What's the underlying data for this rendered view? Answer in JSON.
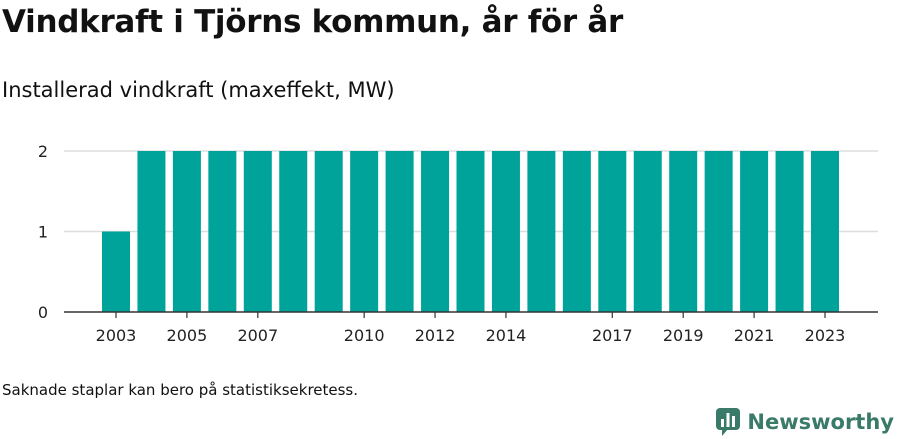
{
  "title": "Vindkraft i Tjörns kommun, år för år",
  "subtitle": "Installerad vindkraft (maxeffekt, MW)",
  "footnote": "Saknade staplar kan bero på statistiksekretess.",
  "brand": {
    "name": "Newsworthy",
    "icon": "newsworthy-logo-icon"
  },
  "colors": {
    "bar": "#00a39a",
    "grid": "#dddddd",
    "axis": "#333333",
    "brand": "#3a7a68"
  },
  "chart_data": {
    "type": "bar",
    "categories": [
      "2003",
      "2004",
      "2005",
      "2006",
      "2007",
      "2008",
      "2009",
      "2010",
      "2011",
      "2012",
      "2013",
      "2014",
      "2015",
      "2016",
      "2017",
      "2018",
      "2019",
      "2020",
      "2021",
      "2022",
      "2023"
    ],
    "values": [
      1,
      2,
      2,
      2,
      2,
      2,
      2,
      2,
      2,
      2,
      2,
      2,
      2,
      2,
      2,
      2,
      2,
      2,
      2,
      2,
      2
    ],
    "x_tick_labels": [
      "2003",
      "2005",
      "2007",
      "2010",
      "2012",
      "2014",
      "2017",
      "2019",
      "2021",
      "2023"
    ],
    "y_ticks": [
      0,
      1,
      2
    ],
    "ylim": [
      0,
      2
    ],
    "grid": true,
    "xlabel": "",
    "ylabel": ""
  }
}
